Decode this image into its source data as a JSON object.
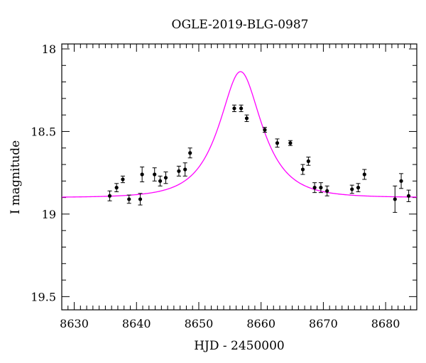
{
  "chart_data": {
    "type": "scatter",
    "title": "OGLE-2019-BLG-0987",
    "xlabel": "HJD - 2450000",
    "ylabel": "I magnitude",
    "xlim": [
      8628,
      8685
    ],
    "ylim": [
      19.58,
      17.97
    ],
    "y_inverted": true,
    "x_ticks": [
      8630,
      8640,
      8650,
      8660,
      8670,
      8680
    ],
    "x_tick_labels": [
      "8630",
      "8640",
      "8650",
      "8660",
      "8670",
      "8680"
    ],
    "y_ticks": [
      18,
      18.5,
      19,
      19.5
    ],
    "y_tick_labels": [
      "18",
      "18.5",
      "19",
      "19.5"
    ],
    "grid": false,
    "points_color": "#000000",
    "model_color": "#ff00ff",
    "points": [
      {
        "x": 8635.7,
        "y": 18.89,
        "err": 0.03
      },
      {
        "x": 8636.8,
        "y": 18.84,
        "err": 0.025
      },
      {
        "x": 8637.8,
        "y": 18.79,
        "err": 0.02
      },
      {
        "x": 8638.8,
        "y": 18.91,
        "err": 0.025
      },
      {
        "x": 8640.6,
        "y": 18.91,
        "err": 0.035
      },
      {
        "x": 8640.9,
        "y": 18.76,
        "err": 0.045
      },
      {
        "x": 8642.9,
        "y": 18.76,
        "err": 0.04
      },
      {
        "x": 8643.8,
        "y": 18.8,
        "err": 0.03
      },
      {
        "x": 8644.7,
        "y": 18.78,
        "err": 0.035
      },
      {
        "x": 8646.8,
        "y": 18.74,
        "err": 0.03
      },
      {
        "x": 8647.8,
        "y": 18.73,
        "err": 0.04
      },
      {
        "x": 8648.6,
        "y": 18.63,
        "err": 0.03
      },
      {
        "x": 8655.7,
        "y": 18.36,
        "err": 0.02
      },
      {
        "x": 8656.8,
        "y": 18.36,
        "err": 0.02
      },
      {
        "x": 8657.7,
        "y": 18.42,
        "err": 0.02
      },
      {
        "x": 8660.6,
        "y": 18.49,
        "err": 0.015
      },
      {
        "x": 8662.6,
        "y": 18.57,
        "err": 0.025
      },
      {
        "x": 8664.7,
        "y": 18.57,
        "err": 0.015
      },
      {
        "x": 8666.7,
        "y": 18.73,
        "err": 0.03
      },
      {
        "x": 8667.6,
        "y": 18.68,
        "err": 0.025
      },
      {
        "x": 8668.6,
        "y": 18.84,
        "err": 0.03
      },
      {
        "x": 8669.6,
        "y": 18.84,
        "err": 0.03
      },
      {
        "x": 8670.6,
        "y": 18.86,
        "err": 0.03
      },
      {
        "x": 8674.6,
        "y": 18.85,
        "err": 0.025
      },
      {
        "x": 8675.6,
        "y": 18.84,
        "err": 0.025
      },
      {
        "x": 8676.6,
        "y": 18.76,
        "err": 0.03
      },
      {
        "x": 8681.5,
        "y": 18.91,
        "err": 0.08
      },
      {
        "x": 8682.5,
        "y": 18.8,
        "err": 0.045
      },
      {
        "x": 8683.7,
        "y": 18.89,
        "err": 0.035
      }
    ],
    "model": {
      "type": "microlensing-paczynski",
      "t0": 8656.7,
      "tE": 5.6,
      "u0": 0.55,
      "baseline_mag": 18.9
    }
  }
}
